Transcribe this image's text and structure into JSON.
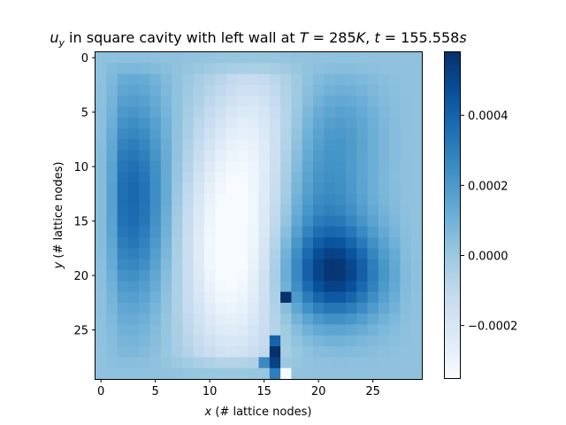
{
  "title": {
    "prefix": "u",
    "prefix_sub": "y",
    "middle": " in square cavity with left wall at ",
    "temp_var": "T",
    "temp_value": " = 285",
    "temp_unit": "K",
    "sep": ", ",
    "time_var": "t",
    "time_value": " = 155.558",
    "time_unit": "s"
  },
  "axes": {
    "xlabel_var": "x",
    "xlabel_text": " (# lattice nodes)",
    "ylabel_var": "y",
    "ylabel_text": " (# lattice nodes)"
  },
  "chart_data": {
    "type": "heatmap",
    "grid_size": [
      30,
      30
    ],
    "x_ticks": [
      0,
      5,
      10,
      15,
      20,
      25
    ],
    "y_ticks": [
      0,
      5,
      10,
      15,
      20,
      25
    ],
    "x_range": [
      -0.5,
      29.5
    ],
    "y_range": [
      29.5,
      -0.5
    ],
    "colormap": "Blues",
    "vmin": -0.00035,
    "vmax": 0.00058,
    "colorbar_ticks": [
      {
        "value": 0.0004,
        "label": "0.0004"
      },
      {
        "value": 0.0002,
        "label": "0.0002"
      },
      {
        "value": 0.0,
        "label": "0.0000"
      },
      {
        "value": -0.0002,
        "label": "−0.0002"
      }
    ],
    "field_shape": [
      {
        "name": "left-wall-updraft",
        "cx": 3.0,
        "cy": 13.0,
        "sx": 2.4,
        "sy": 7.0,
        "amp": 0.00036
      },
      {
        "name": "central-downdraft",
        "cx": 12.0,
        "cy": 17.5,
        "sx": 3.3,
        "sy": 8.0,
        "amp": -0.00042
      },
      {
        "name": "central-downdraft-upper",
        "cx": 14.5,
        "cy": 6.5,
        "sx": 2.8,
        "sy": 5.0,
        "amp": -0.00016
      },
      {
        "name": "right-updraft-core",
        "cx": 21.5,
        "cy": 20.0,
        "sx": 3.2,
        "sy": 3.0,
        "amp": 0.00045
      },
      {
        "name": "right-updraft-diagonal",
        "cx": 20.5,
        "cy": 13.0,
        "sx": 3.0,
        "sy": 5.5,
        "amp": 0.00022
      },
      {
        "name": "upper-right-lobe",
        "cx": 22.5,
        "cy": 6.0,
        "sx": 2.5,
        "sy": 3.0,
        "amp": 8e-05
      }
    ],
    "baseline": 3e-05,
    "special_cells": [
      {
        "col": 17,
        "row": 22,
        "value": 0.00058
      },
      {
        "col": 16,
        "row": 27,
        "value": 0.00058
      },
      {
        "col": 16,
        "row": 28,
        "value": 0.00052
      },
      {
        "col": 16,
        "row": 26,
        "value": 0.0004
      },
      {
        "col": 17,
        "row": 29,
        "value": -0.00035
      },
      {
        "col": 16,
        "row": 29,
        "value": 0.0003
      },
      {
        "col": 15,
        "row": 28,
        "value": 0.00026
      }
    ]
  }
}
